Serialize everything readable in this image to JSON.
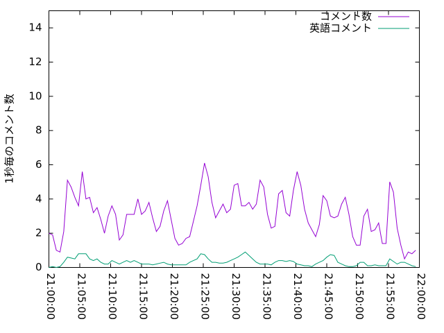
{
  "chart_data": {
    "type": "line",
    "ylabel": "1秒毎のコメント数",
    "x": [
      "21:00:00",
      "21:00:36",
      "21:01:12",
      "21:01:48",
      "21:02:24",
      "21:03:00",
      "21:03:36",
      "21:04:12",
      "21:04:48",
      "21:05:24",
      "21:06:00",
      "21:06:36",
      "21:07:12",
      "21:07:48",
      "21:08:24",
      "21:09:00",
      "21:09:36",
      "21:10:12",
      "21:10:48",
      "21:11:24",
      "21:12:00",
      "21:12:36",
      "21:13:12",
      "21:13:48",
      "21:14:24",
      "21:15:00",
      "21:15:36",
      "21:16:12",
      "21:16:48",
      "21:17:24",
      "21:18:00",
      "21:18:36",
      "21:19:12",
      "21:19:48",
      "21:20:24",
      "21:21:00",
      "21:21:36",
      "21:22:12",
      "21:22:48",
      "21:23:24",
      "21:24:00",
      "21:24:36",
      "21:25:12",
      "21:25:48",
      "21:26:24",
      "21:27:00",
      "21:27:36",
      "21:28:12",
      "21:28:48",
      "21:29:24",
      "21:30:00",
      "21:30:36",
      "21:31:12",
      "21:31:48",
      "21:32:24",
      "21:33:00",
      "21:33:36",
      "21:34:12",
      "21:34:48",
      "21:35:24",
      "21:36:00",
      "21:36:36",
      "21:37:12",
      "21:37:48",
      "21:38:24",
      "21:39:00",
      "21:39:36",
      "21:40:12",
      "21:40:48",
      "21:41:24",
      "21:42:00",
      "21:42:36",
      "21:43:12",
      "21:43:48",
      "21:44:24",
      "21:45:00",
      "21:45:36",
      "21:46:12",
      "21:46:48",
      "21:47:24",
      "21:48:00",
      "21:48:36",
      "21:49:12",
      "21:49:48",
      "21:50:24",
      "21:51:00",
      "21:51:36",
      "21:52:12",
      "21:52:48",
      "21:53:24",
      "21:54:00",
      "21:54:36",
      "21:55:12",
      "21:55:48",
      "21:56:24",
      "21:57:00",
      "21:57:36",
      "21:58:12",
      "21:58:48",
      "21:59:24"
    ],
    "series": [
      {
        "name": "コメント数",
        "color": "#9400d3",
        "values": [
          2.0,
          1.9,
          1.0,
          0.9,
          2.1,
          5.1,
          4.7,
          4.1,
          3.6,
          5.6,
          4.0,
          4.1,
          3.2,
          3.5,
          2.8,
          2.0,
          3.0,
          3.6,
          3.1,
          1.6,
          1.9,
          3.1,
          3.1,
          3.1,
          4.0,
          3.1,
          3.3,
          3.8,
          2.9,
          2.1,
          2.4,
          3.3,
          3.9,
          2.8,
          1.7,
          1.3,
          1.4,
          1.7,
          1.8,
          2.7,
          3.6,
          4.8,
          6.1,
          5.3,
          3.8,
          2.9,
          3.3,
          3.7,
          3.2,
          3.4,
          4.8,
          4.9,
          3.6,
          3.6,
          3.8,
          3.4,
          3.7,
          5.1,
          4.7,
          3.1,
          2.3,
          2.4,
          4.3,
          4.5,
          3.2,
          3.0,
          4.5,
          5.6,
          4.8,
          3.4,
          2.6,
          2.2,
          1.8,
          2.5,
          4.2,
          3.9,
          3.0,
          2.9,
          3.0,
          3.7,
          4.1,
          3.1,
          1.8,
          1.3,
          1.3,
          3.0,
          3.4,
          2.1,
          2.2,
          2.6,
          1.4,
          1.4,
          5.0,
          4.4,
          2.3,
          1.3,
          0.5,
          0.9,
          0.8,
          1.0
        ]
      },
      {
        "name": "英語コメント",
        "color": "#009e73",
        "values": [
          0.0,
          0.05,
          0.0,
          0.05,
          0.3,
          0.6,
          0.55,
          0.5,
          0.8,
          0.8,
          0.8,
          0.5,
          0.4,
          0.5,
          0.3,
          0.2,
          0.2,
          0.4,
          0.3,
          0.2,
          0.3,
          0.4,
          0.3,
          0.4,
          0.3,
          0.2,
          0.2,
          0.2,
          0.15,
          0.2,
          0.25,
          0.3,
          0.2,
          0.15,
          0.15,
          0.15,
          0.15,
          0.15,
          0.3,
          0.4,
          0.5,
          0.8,
          0.75,
          0.5,
          0.3,
          0.3,
          0.25,
          0.25,
          0.3,
          0.4,
          0.5,
          0.6,
          0.75,
          0.9,
          0.7,
          0.5,
          0.3,
          0.2,
          0.2,
          0.2,
          0.15,
          0.3,
          0.4,
          0.4,
          0.35,
          0.4,
          0.35,
          0.2,
          0.15,
          0.1,
          0.1,
          0.05,
          0.2,
          0.3,
          0.4,
          0.6,
          0.75,
          0.7,
          0.3,
          0.2,
          0.1,
          0.05,
          0.05,
          0.1,
          0.3,
          0.3,
          0.1,
          0.1,
          0.15,
          0.1,
          0.1,
          0.1,
          0.5,
          0.35,
          0.2,
          0.3,
          0.3,
          0.2,
          0.1,
          0.05
        ]
      }
    ],
    "xlim": [
      "21:00:00",
      "22:00:00"
    ],
    "xticks": [
      "21:00:00",
      "21:05:00",
      "21:10:00",
      "21:15:00",
      "21:20:00",
      "21:25:00",
      "21:30:00",
      "21:35:00",
      "21:40:00",
      "21:45:00",
      "21:50:00",
      "21:55:00",
      "22:00:00"
    ],
    "ylim": [
      0,
      15
    ],
    "yticks": [
      0,
      2,
      4,
      6,
      8,
      10,
      12,
      14
    ],
    "legend": "top-right"
  }
}
